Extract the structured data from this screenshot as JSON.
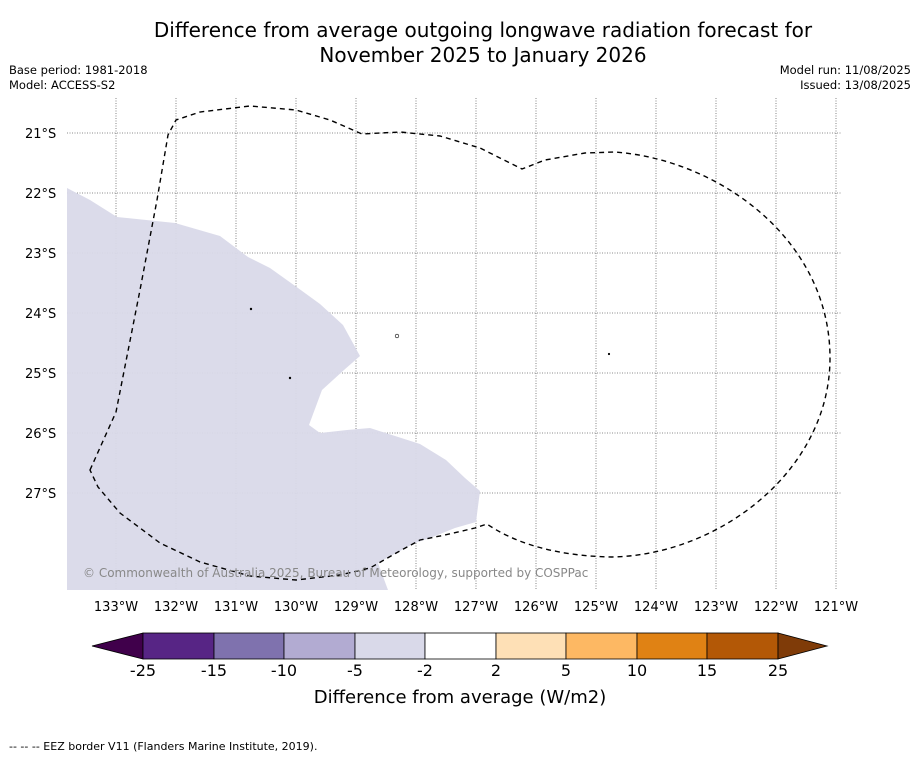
{
  "header": {
    "title_line1": "Difference from average outgoing longwave radiation forecast for",
    "title_line2": "November 2025 to January 2026",
    "base_period": "Base period: 1981-2018",
    "model": "Model: ACCESS-S2",
    "model_run": "Model run: 11/08/2025",
    "issued": "Issued: 13/08/2025"
  },
  "map": {
    "lat_labels": [
      "21°S",
      "22°S",
      "23°S",
      "24°S",
      "25°S",
      "26°S",
      "27°S"
    ],
    "lon_labels": [
      "133°W",
      "132°W",
      "131°W",
      "130°W",
      "129°W",
      "128°W",
      "127°W",
      "126°W",
      "125°W",
      "124°W",
      "123°W",
      "122°W",
      "121°W"
    ],
    "copyright": "© Commonwealth of Australia 2025, Bureau of Meteorology, supported by COSPPac",
    "shaded_region_color": "#d9d9e9",
    "eez_line_style": "dashed"
  },
  "legend": {
    "title": "Difference from average (W/m2)",
    "ticks": [
      "-25",
      "-15",
      "-10",
      "-5",
      "-2",
      "2",
      "5",
      "10",
      "15",
      "25"
    ],
    "colors": [
      "#40004b",
      "#572585",
      "#7f72ae",
      "#b2abd2",
      "#d9d9e9",
      "#ffffff",
      "#fee0b6",
      "#fdb863",
      "#e08214",
      "#b35806",
      "#7f3b08"
    ]
  },
  "footer": {
    "eez_note": "--  --  -- EEZ border V11 (Flanders Marine Institute, 2019)."
  }
}
